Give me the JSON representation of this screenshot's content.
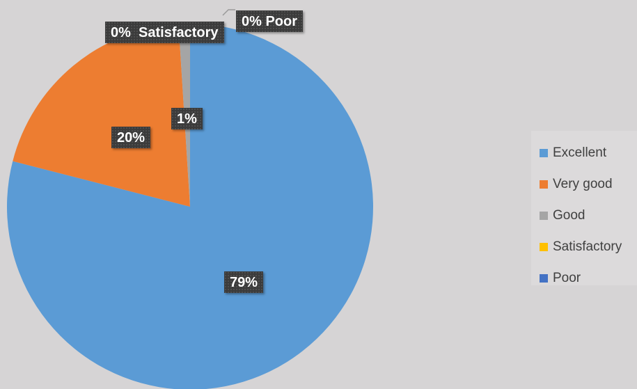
{
  "chart_data": {
    "type": "pie",
    "categories": [
      "Excellent",
      "Very good",
      "Good",
      "Satisfactory",
      "Poor"
    ],
    "values": [
      79,
      20,
      1,
      0,
      0
    ],
    "data_labels": [
      "79%",
      "20%",
      "1%",
      "0%  Satisfactory",
      "0% Poor"
    ],
    "colors": [
      "#5b9bd5",
      "#ed7d31",
      "#a5a5a5",
      "#ffc000",
      "#4472c4"
    ],
    "legend_position": "right",
    "title": ""
  }
}
